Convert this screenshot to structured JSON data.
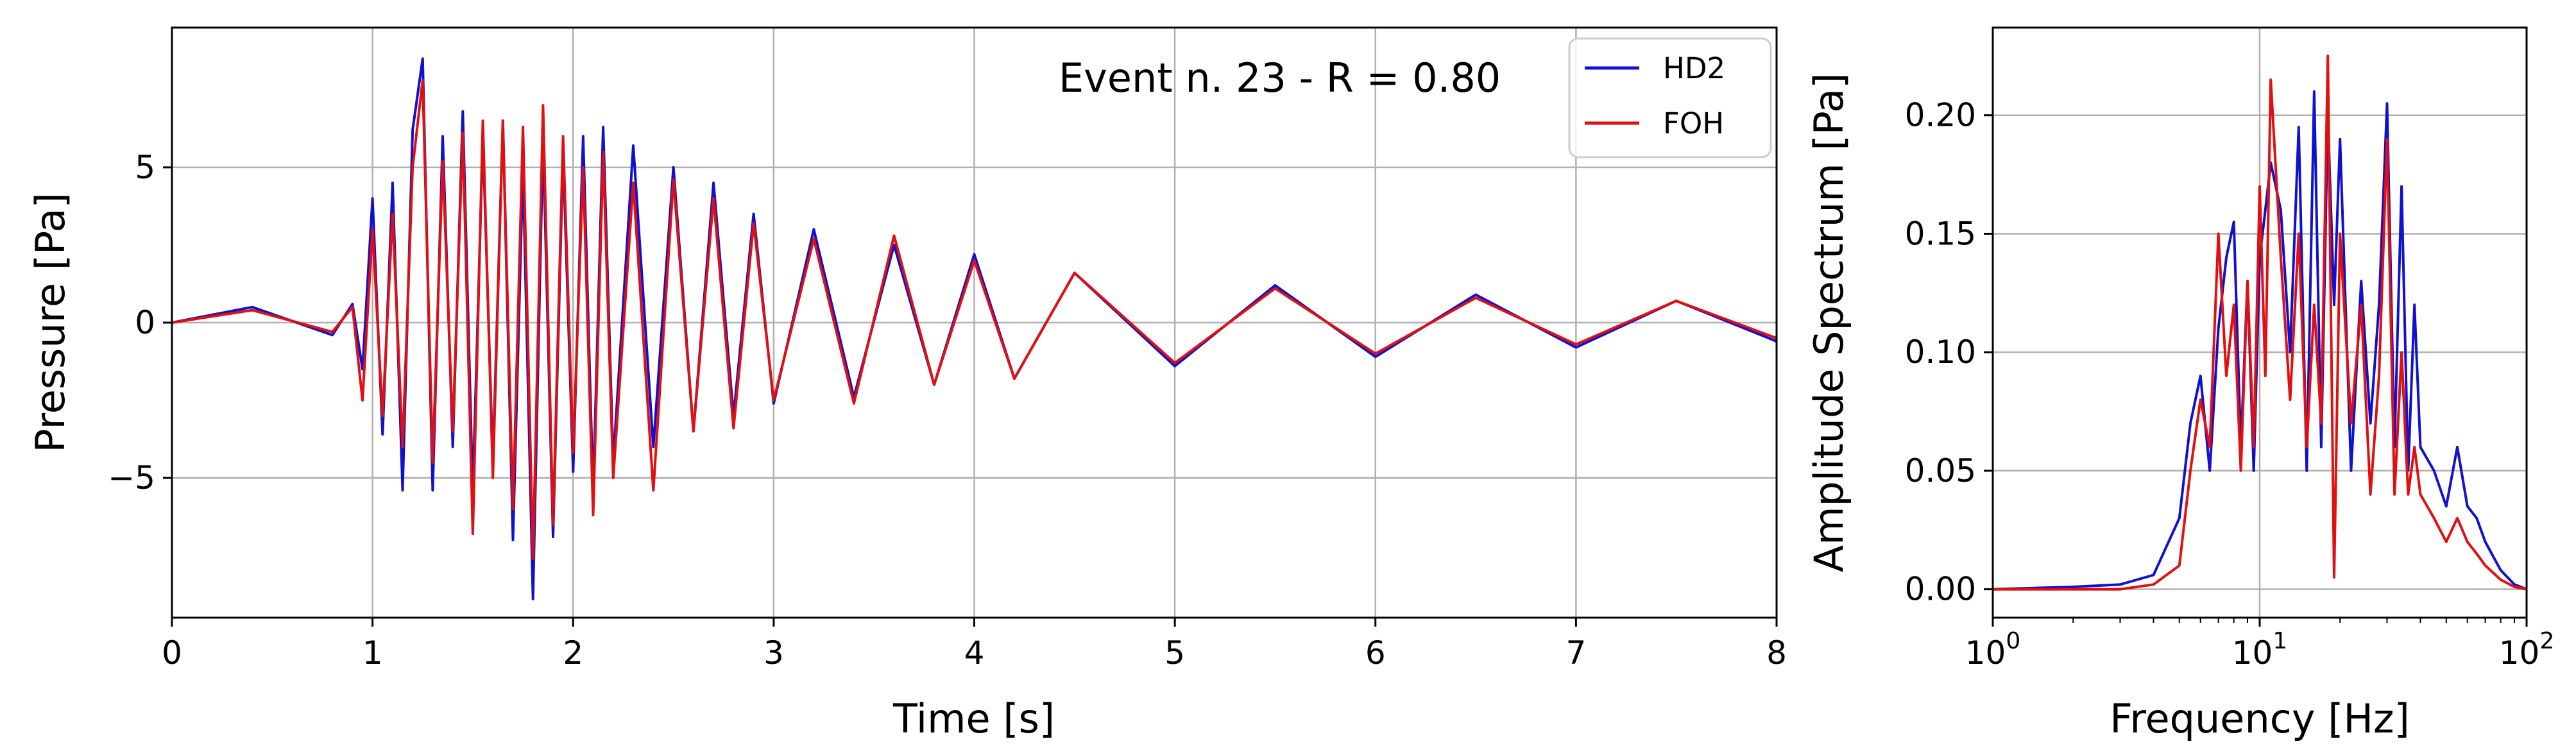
{
  "chart_data": [
    {
      "type": "line",
      "xlabel": "Time [s]",
      "ylabel": "Pressure [Pa]",
      "xlim": [
        0,
        8
      ],
      "ylim": [
        -9.5,
        9.5
      ],
      "xticks": [
        0,
        1,
        2,
        3,
        4,
        5,
        6,
        7,
        8
      ],
      "xtick_labels": [
        "0",
        "1",
        "2",
        "3",
        "4",
        "5",
        "6",
        "7",
        "8"
      ],
      "yticks": [
        -5,
        0,
        5
      ],
      "ytick_labels": [
        "−5",
        "0",
        "5"
      ],
      "grid": true,
      "legend_position": "top-right",
      "annotation": "Event n. 23 - R = 0.80",
      "series": [
        {
          "name": "HD2",
          "color": "#1010d0",
          "x": [
            0,
            0.4,
            0.8,
            0.9,
            0.95,
            1.0,
            1.05,
            1.1,
            1.15,
            1.2,
            1.25,
            1.3,
            1.35,
            1.4,
            1.45,
            1.5,
            1.55,
            1.6,
            1.65,
            1.7,
            1.75,
            1.8,
            1.85,
            1.9,
            1.95,
            2.0,
            2.05,
            2.1,
            2.15,
            2.2,
            2.3,
            2.4,
            2.5,
            2.6,
            2.7,
            2.8,
            2.9,
            3.0,
            3.2,
            3.4,
            3.6,
            3.8,
            4.0,
            4.2,
            4.5,
            5.0,
            5.5,
            6.0,
            6.5,
            7.0,
            7.5,
            8.0
          ],
          "y": [
            0,
            0.5,
            -0.4,
            0.6,
            -1.5,
            4.0,
            -3.6,
            4.5,
            -5.4,
            6.2,
            8.5,
            -5.4,
            6.0,
            -4.0,
            6.8,
            -5.5,
            6.0,
            -4.5,
            6.5,
            -7.0,
            5.0,
            -8.9,
            6.0,
            -6.9,
            5.5,
            -4.8,
            6.0,
            -5.5,
            6.3,
            -4.5,
            5.7,
            -4.0,
            5.0,
            -3.5,
            4.5,
            -3.0,
            3.5,
            -2.6,
            3.0,
            -2.4,
            2.5,
            -2.0,
            2.2,
            -1.8,
            1.6,
            -1.4,
            1.2,
            -1.1,
            0.9,
            -0.8,
            0.7,
            -0.6
          ]
        },
        {
          "name": "FOH",
          "color": "#e01010",
          "x": [
            0,
            0.4,
            0.8,
            0.9,
            0.95,
            1.0,
            1.05,
            1.1,
            1.15,
            1.2,
            1.25,
            1.3,
            1.35,
            1.4,
            1.45,
            1.5,
            1.55,
            1.6,
            1.65,
            1.7,
            1.75,
            1.8,
            1.85,
            1.9,
            1.95,
            2.0,
            2.05,
            2.1,
            2.15,
            2.2,
            2.3,
            2.4,
            2.5,
            2.6,
            2.7,
            2.8,
            2.9,
            3.0,
            3.2,
            3.4,
            3.6,
            3.8,
            4.0,
            4.2,
            4.5,
            5.0,
            5.5,
            6.0,
            6.5,
            7.0,
            7.5,
            8.0
          ],
          "y": [
            0,
            0.4,
            -0.3,
            0.5,
            -2.5,
            3.0,
            -3.0,
            3.5,
            -4.0,
            5.0,
            7.8,
            -4.5,
            5.2,
            -3.5,
            6.1,
            -6.8,
            6.5,
            -5.0,
            6.5,
            -6.0,
            6.3,
            -7.6,
            7.0,
            -6.5,
            6.0,
            -4.2,
            5.0,
            -6.2,
            5.5,
            -5.0,
            4.5,
            -5.4,
            4.6,
            -3.5,
            4.0,
            -3.4,
            3.2,
            -2.5,
            2.7,
            -2.6,
            2.8,
            -2.0,
            2.0,
            -1.8,
            1.6,
            -1.3,
            1.1,
            -1.0,
            0.8,
            -0.7,
            0.7,
            -0.5
          ]
        }
      ]
    },
    {
      "type": "line",
      "xlabel": "Frequency [Hz]",
      "ylabel": "Amplitude Spectrum [Pa]",
      "xscale": "log",
      "xlim": [
        1,
        100
      ],
      "ylim": [
        -0.012,
        0.237
      ],
      "xticks": [
        1,
        10,
        100
      ],
      "xtick_labels": [
        {
          "base": "10",
          "exp": "0"
        },
        {
          "base": "10",
          "exp": "1"
        },
        {
          "base": "10",
          "exp": "2"
        }
      ],
      "yticks": [
        0,
        0.05,
        0.1,
        0.15,
        0.2
      ],
      "ytick_labels": [
        "0.00",
        "0.05",
        "0.10",
        "0.15",
        "0.20"
      ],
      "grid": true,
      "series": [
        {
          "name": "HD2",
          "color": "#1010d0",
          "x": [
            1,
            2,
            3,
            4,
            5,
            5.5,
            6,
            6.5,
            7,
            7.5,
            8,
            8.5,
            9,
            9.5,
            10,
            10.5,
            11,
            12,
            13,
            14,
            15,
            16,
            17,
            18,
            19,
            20,
            22,
            24,
            26,
            28,
            30,
            32,
            34,
            36,
            38,
            40,
            45,
            50,
            55,
            60,
            65,
            70,
            80,
            90,
            100
          ],
          "y": [
            0,
            0.001,
            0.002,
            0.006,
            0.03,
            0.07,
            0.09,
            0.05,
            0.11,
            0.14,
            0.155,
            0.06,
            0.13,
            0.05,
            0.14,
            0.16,
            0.18,
            0.16,
            0.1,
            0.195,
            0.05,
            0.21,
            0.06,
            0.2,
            0.12,
            0.19,
            0.05,
            0.13,
            0.07,
            0.12,
            0.205,
            0.06,
            0.17,
            0.05,
            0.12,
            0.06,
            0.05,
            0.035,
            0.06,
            0.035,
            0.03,
            0.02,
            0.008,
            0.002,
            0
          ]
        },
        {
          "name": "FOH",
          "color": "#e01010",
          "x": [
            1,
            2,
            3,
            4,
            5,
            5.5,
            6,
            6.5,
            7,
            7.5,
            8,
            8.5,
            9,
            9.5,
            10,
            10.5,
            11,
            12,
            13,
            14,
            15,
            16,
            17,
            18,
            19,
            20,
            22,
            24,
            26,
            28,
            30,
            32,
            34,
            36,
            38,
            40,
            45,
            50,
            55,
            60,
            65,
            70,
            80,
            90,
            100
          ],
          "y": [
            0,
            0,
            0,
            0.002,
            0.01,
            0.05,
            0.08,
            0.06,
            0.15,
            0.09,
            0.12,
            0.05,
            0.13,
            0.06,
            0.17,
            0.09,
            0.215,
            0.14,
            0.08,
            0.15,
            0.06,
            0.12,
            0.07,
            0.225,
            0.005,
            0.15,
            0.07,
            0.12,
            0.04,
            0.09,
            0.19,
            0.04,
            0.1,
            0.04,
            0.06,
            0.04,
            0.03,
            0.02,
            0.03,
            0.02,
            0.015,
            0.01,
            0.004,
            0.001,
            0
          ]
        }
      ]
    }
  ]
}
